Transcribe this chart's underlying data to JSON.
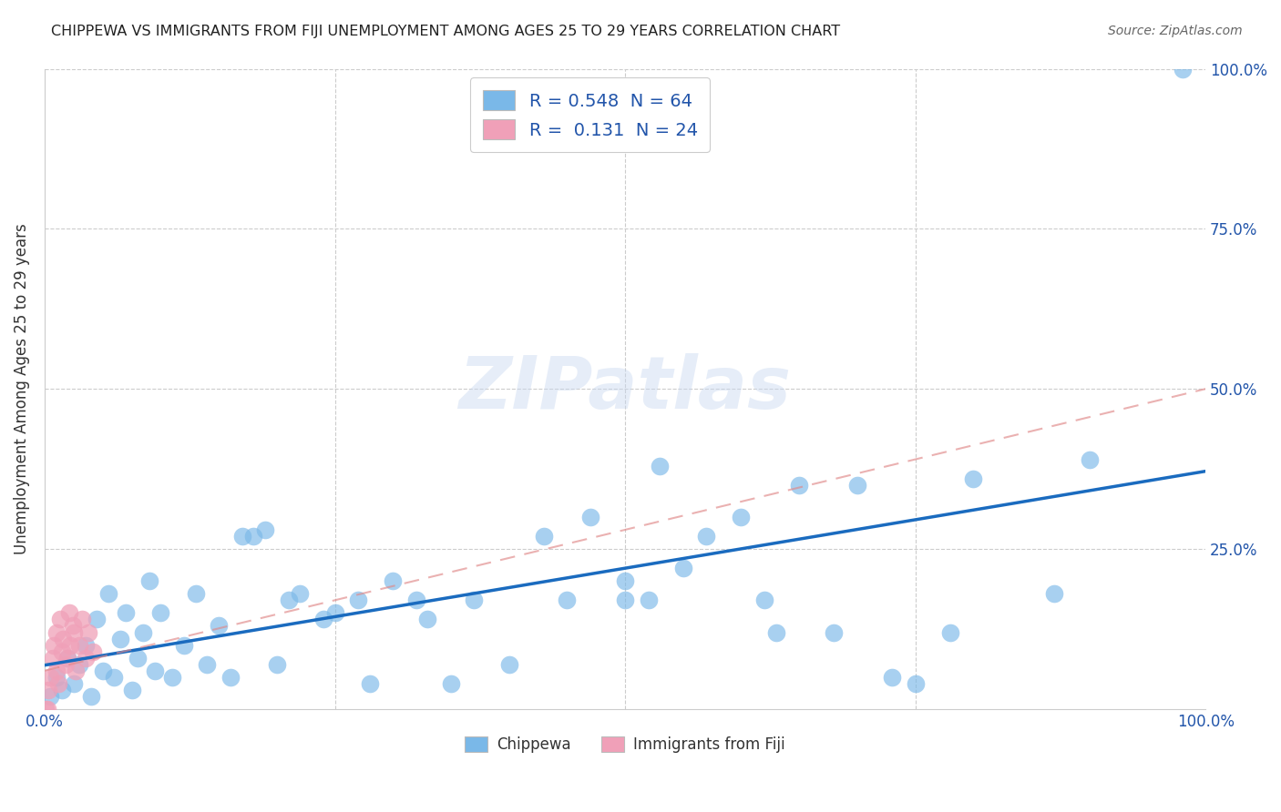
{
  "title": "CHIPPEWA VS IMMIGRANTS FROM FIJI UNEMPLOYMENT AMONG AGES 25 TO 29 YEARS CORRELATION CHART",
  "source": "Source: ZipAtlas.com",
  "ylabel": "Unemployment Among Ages 25 to 29 years",
  "ytick_labels_right": [
    "100.0%",
    "75.0%",
    "50.0%",
    "25.0%"
  ],
  "ytick_values": [
    0,
    25,
    50,
    75,
    100
  ],
  "xtick_labels": [
    "0.0%",
    "25.0%",
    "50.0%",
    "75.0%",
    "100.0%"
  ],
  "xtick_values": [
    0,
    25,
    50,
    75,
    100
  ],
  "legend_entries": [
    {
      "label": "R = 0.548  N = 64",
      "color": "#a8d0f0"
    },
    {
      "label": "R =  0.131  N = 24",
      "color": "#f5b8c8"
    }
  ],
  "bottom_legend": [
    "Chippewa",
    "Immigrants from Fiji"
  ],
  "bottom_legend_colors": [
    "#a8d0f0",
    "#f5b8c8"
  ],
  "watermark": "ZIPatlas",
  "chippewa_x": [
    0.5,
    1,
    1.5,
    2,
    2.5,
    3,
    3.5,
    4,
    4.5,
    5,
    5.5,
    6,
    6.5,
    7,
    7.5,
    8,
    8.5,
    9,
    9.5,
    10,
    11,
    12,
    13,
    14,
    15,
    16,
    17,
    18,
    19,
    20,
    21,
    22,
    24,
    25,
    27,
    28,
    30,
    32,
    33,
    35,
    37,
    40,
    43,
    45,
    47,
    50,
    50,
    52,
    53,
    55,
    57,
    60,
    62,
    63,
    65,
    68,
    70,
    73,
    75,
    78,
    80,
    87,
    90,
    98
  ],
  "chippewa_y": [
    2,
    5,
    3,
    8,
    4,
    7,
    10,
    2,
    14,
    6,
    18,
    5,
    11,
    15,
    3,
    8,
    12,
    20,
    6,
    15,
    5,
    10,
    18,
    7,
    13,
    5,
    27,
    27,
    28,
    7,
    17,
    18,
    14,
    15,
    17,
    4,
    20,
    17,
    14,
    4,
    17,
    7,
    27,
    17,
    30,
    20,
    17,
    17,
    38,
    22,
    27,
    30,
    17,
    12,
    35,
    12,
    35,
    5,
    4,
    12,
    36,
    18,
    39,
    100
  ],
  "fiji_x": [
    0.2,
    0.3,
    0.5,
    0.7,
    0.8,
    1.0,
    1.0,
    1.2,
    1.3,
    1.5,
    1.6,
    1.8,
    2.0,
    2.1,
    2.2,
    2.4,
    2.5,
    2.7,
    3.0,
    3.2,
    3.5,
    3.8,
    4.2,
    0.1
  ],
  "fiji_y": [
    0,
    3,
    5,
    8,
    10,
    6,
    12,
    4,
    14,
    9,
    11,
    7,
    8,
    15,
    10,
    13,
    12,
    6,
    10,
    14,
    8,
    12,
    9,
    0
  ],
  "chippewa_color": "#7ab8e8",
  "fiji_color": "#f0a0b8",
  "chippewa_trend_color": "#1a6bbf",
  "fiji_trend_color": "#e08888",
  "xlim": [
    0,
    100
  ],
  "ylim": [
    0,
    100
  ],
  "chippewa_trend_x0": 0,
  "chippewa_trend_y0": 5.0,
  "chippewa_trend_x1": 100,
  "chippewa_trend_y1": 40.0,
  "fiji_trend_x0": 0,
  "fiji_trend_y0": 6.0,
  "fiji_trend_x1": 100,
  "fiji_trend_y1": 50.0
}
